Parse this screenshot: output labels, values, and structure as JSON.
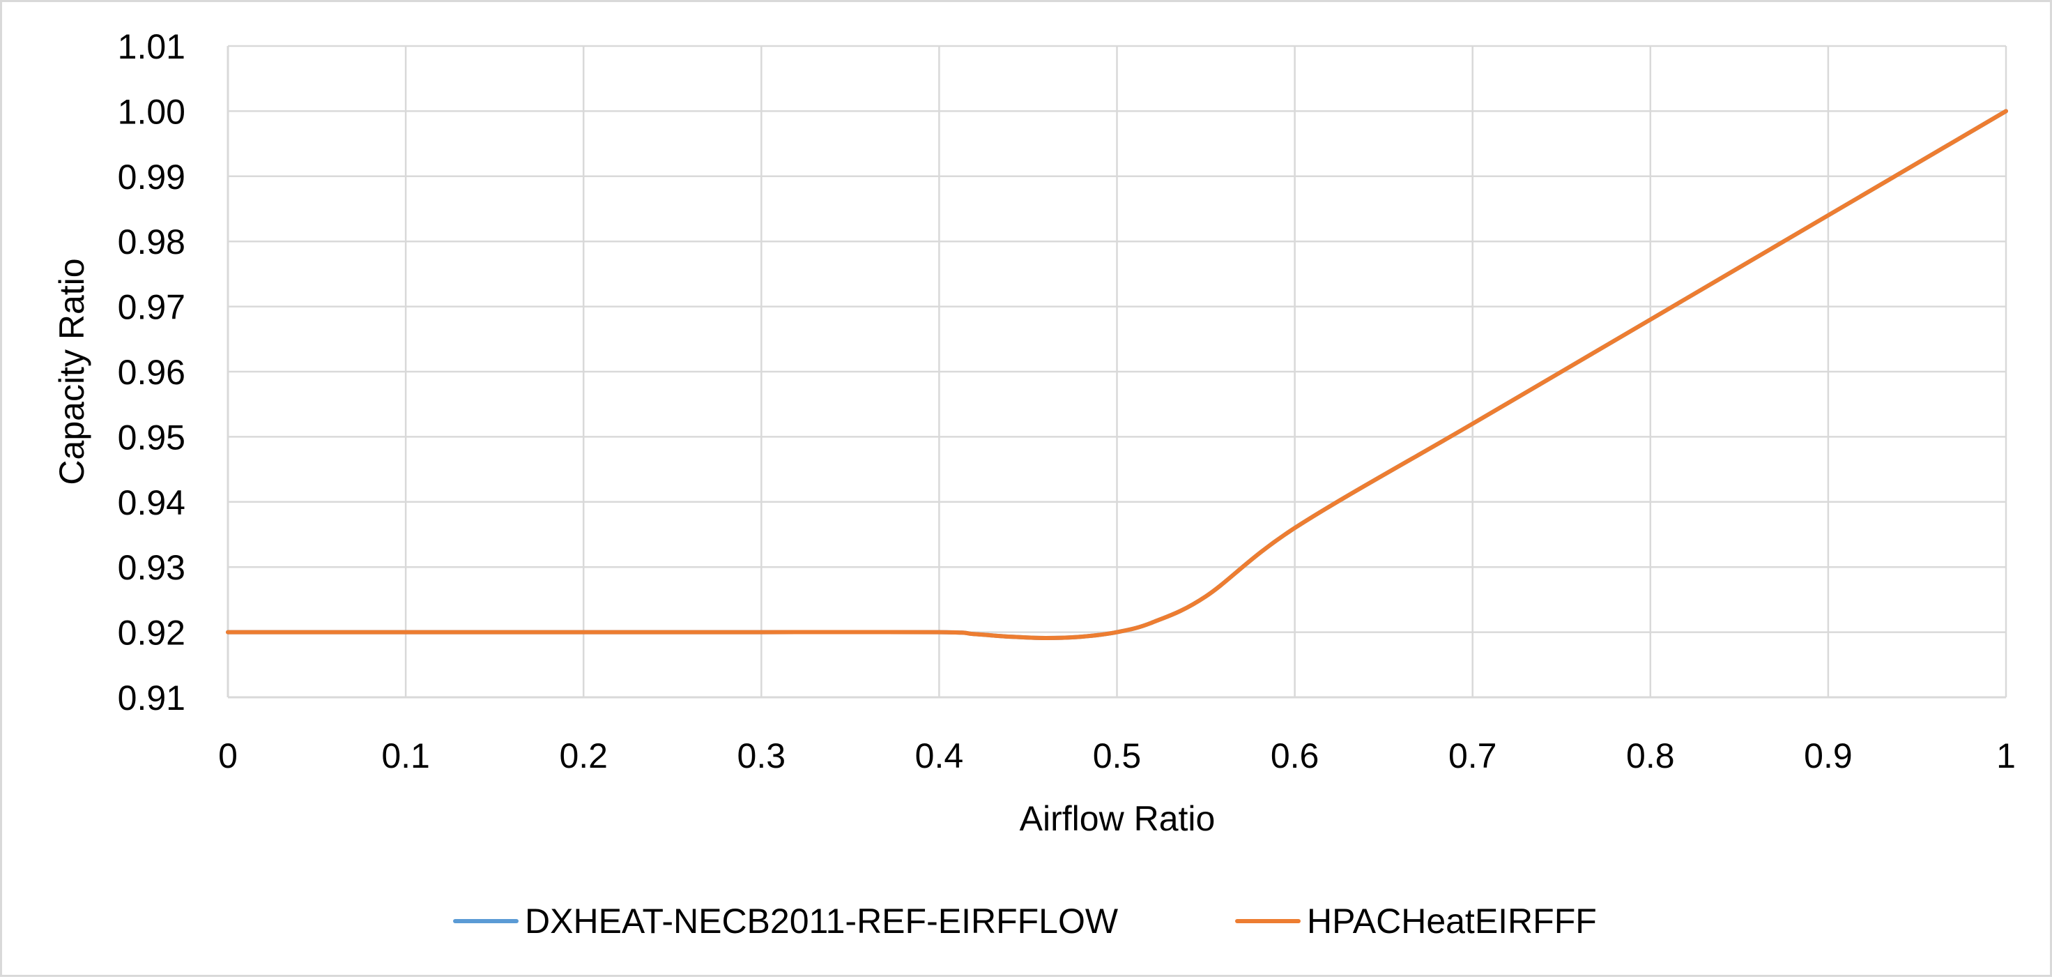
{
  "chart_data": {
    "type": "line",
    "title": "",
    "xlabel": "Airflow Ratio",
    "ylabel": "Capacity Ratio",
    "xlim": [
      0,
      1
    ],
    "ylim": [
      0.91,
      1.01
    ],
    "x_ticks": [
      "0",
      "0.1",
      "0.2",
      "0.3",
      "0.4",
      "0.5",
      "0.6",
      "0.7",
      "0.8",
      "0.9",
      "1"
    ],
    "y_ticks": [
      "0.91",
      "0.92",
      "0.93",
      "0.94",
      "0.95",
      "0.96",
      "0.97",
      "0.98",
      "0.99",
      "1.00",
      "1.01"
    ],
    "grid": true,
    "legend_position": "bottom",
    "series": [
      {
        "name": "DXHEAT-NECB2011-REF-EIRFFLOW",
        "color": "#5b9bd5",
        "x": [
          0,
          0.1,
          0.2,
          0.3,
          0.4,
          0.42,
          0.44,
          0.46,
          0.48,
          0.5,
          0.52,
          0.55,
          0.6,
          0.7,
          0.8,
          0.9,
          1.0
        ],
        "y": [
          0.92,
          0.92,
          0.92,
          0.92,
          0.92,
          0.9197,
          0.9193,
          0.9191,
          0.9193,
          0.92,
          0.9215,
          0.9255,
          0.936,
          0.952,
          0.968,
          0.984,
          1.0
        ]
      },
      {
        "name": "HPACHeatEIRFFF",
        "color": "#ed7d31",
        "x": [
          0,
          0.1,
          0.2,
          0.3,
          0.4,
          0.42,
          0.44,
          0.46,
          0.48,
          0.5,
          0.52,
          0.55,
          0.6,
          0.7,
          0.8,
          0.9,
          1.0
        ],
        "y": [
          0.92,
          0.92,
          0.92,
          0.92,
          0.92,
          0.9197,
          0.9193,
          0.9191,
          0.9193,
          0.92,
          0.9215,
          0.9255,
          0.936,
          0.952,
          0.968,
          0.984,
          1.0
        ]
      }
    ]
  }
}
